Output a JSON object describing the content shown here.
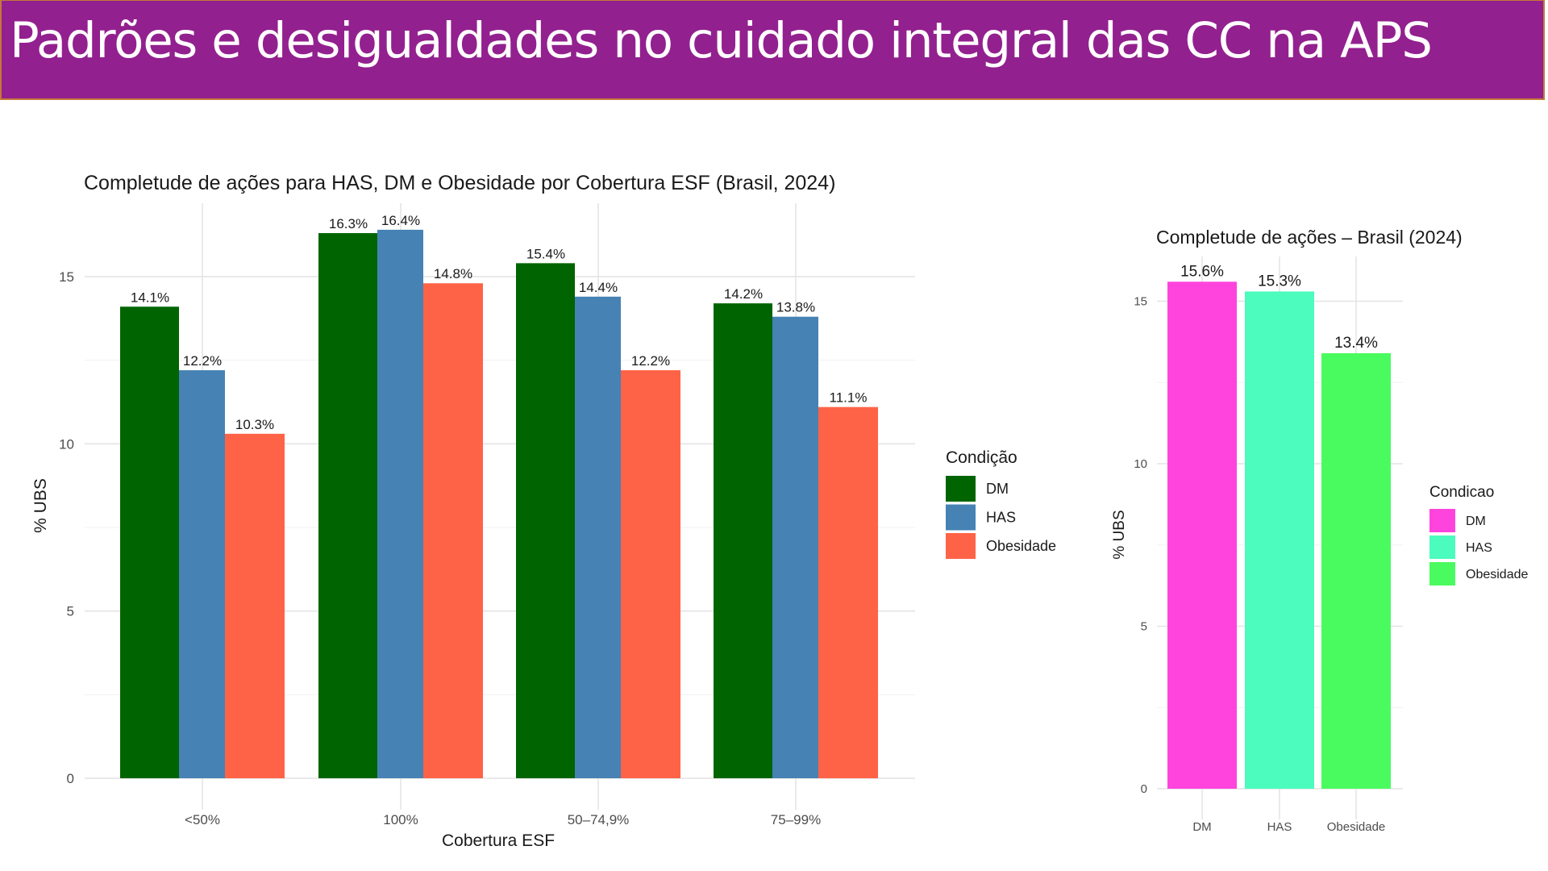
{
  "slide": {
    "title": "Padrões e desigualdades no cuidado integral das CC na APS",
    "banner_color": "#93208F"
  },
  "chart_data": [
    {
      "type": "bar",
      "title": "Completude de ações para HAS, DM e Obesidade por Cobertura ESF (Brasil, 2024)",
      "xlabel": "Cobertura ESF",
      "ylabel": "% UBS",
      "categories": [
        "<50%",
        "100%",
        "50–74,9%",
        "75–99%"
      ],
      "yticks": [
        "0",
        "5",
        "10",
        "15"
      ],
      "ytick_values": [
        0,
        5,
        10,
        15
      ],
      "ylim": [
        0,
        17
      ],
      "grid": true,
      "legend": {
        "title": "Condição",
        "position": "right"
      },
      "series": [
        {
          "name": "DM",
          "color": "#006400",
          "values": [
            14.1,
            16.3,
            15.4,
            14.2
          ],
          "labels": [
            "14.1%",
            "16.3%",
            "15.4%",
            "14.2%"
          ]
        },
        {
          "name": "HAS",
          "color": "#4682B4",
          "values": [
            12.2,
            16.4,
            14.4,
            13.8
          ],
          "labels": [
            "12.2%",
            "16.4%",
            "14.4%",
            "13.8%"
          ]
        },
        {
          "name": "Obesidade",
          "color": "#FF6347",
          "values": [
            10.3,
            14.8,
            12.2,
            11.1
          ],
          "labels": [
            "10.3%",
            "14.8%",
            "12.2%",
            "11.1%"
          ]
        }
      ]
    },
    {
      "type": "bar",
      "title": "Completude de ações – Brasil (2024)",
      "xlabel": "",
      "ylabel": "% UBS",
      "categories": [
        "DM",
        "HAS",
        "Obesidade"
      ],
      "yticks": [
        "0",
        "5",
        "10",
        "15"
      ],
      "ytick_values": [
        0,
        5,
        10,
        15
      ],
      "ylim": [
        0,
        16.5
      ],
      "grid": true,
      "legend": {
        "title": "Condicao",
        "position": "right",
        "entries": [
          "DM",
          "HAS",
          "Obesidade"
        ]
      },
      "values": [
        15.6,
        15.3,
        13.4
      ],
      "labels": [
        "15.6%",
        "15.3%",
        "13.4%"
      ],
      "colors": [
        "#FF44DD",
        "#4BFCBE",
        "#4AFB5F"
      ]
    }
  ]
}
